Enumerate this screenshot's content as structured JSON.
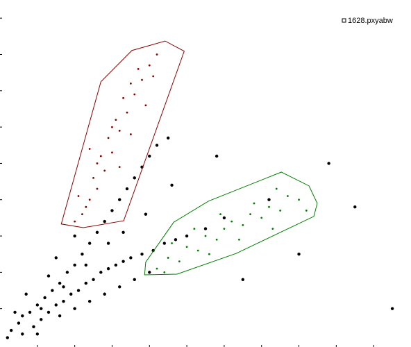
{
  "chart_data": {
    "type": "scatter",
    "xlim": [
      0,
      11
    ],
    "ylim": [
      0,
      9.5
    ],
    "xticks": [
      1,
      2,
      3,
      4,
      5,
      6,
      7,
      8,
      9,
      10
    ],
    "yticks": [
      1,
      2,
      3,
      4,
      5,
      6,
      7,
      8,
      9
    ],
    "legend": "top-right",
    "series": [
      {
        "name": "1628.pxyabw",
        "color": "#000000",
        "x": [
          0.3,
          0.5,
          0.6,
          0.8,
          0.9,
          1.0,
          1.1,
          1.2,
          1.3,
          1.4,
          1.5,
          1.6,
          1.7,
          1.8,
          1.9,
          2.0,
          2.1,
          2.2,
          2.3,
          2.4,
          2.5,
          2.6,
          2.7,
          2.8,
          2.9,
          3.0,
          3.1,
          3.2,
          3.3,
          3.4,
          3.5,
          3.6,
          3.8,
          3.8,
          4.1,
          4.0,
          4.4,
          4.2,
          4.7,
          4.5,
          5.0,
          0.4,
          0.7,
          1.0,
          1.3,
          1.6,
          2.0,
          2.4,
          2.8,
          3.2,
          3.6,
          4.0,
          1.5,
          2.0,
          0.2,
          0.6,
          1.1,
          1.7,
          2.3,
          2.9,
          3.3,
          3.9,
          4.6,
          5.5,
          6.0,
          6.5,
          7.2,
          8.0,
          9.5,
          8.8,
          5.8,
          10.5
        ],
        "values": [
          0.4,
          0.6,
          0.3,
          0.9,
          0.5,
          1.1,
          0.7,
          1.3,
          0.9,
          1.5,
          1.1,
          1.7,
          1.2,
          2.0,
          1.4,
          2.2,
          1.5,
          2.5,
          1.7,
          2.8,
          1.8,
          3.1,
          2.0,
          3.4,
          2.1,
          3.7,
          2.2,
          4.0,
          2.3,
          4.3,
          2.4,
          4.6,
          2.5,
          4.9,
          2.6,
          5.2,
          2.8,
          5.5,
          2.9,
          5.7,
          3.0,
          0.9,
          1.4,
          0.3,
          1.9,
          0.8,
          1.0,
          1.2,
          1.4,
          1.6,
          1.8,
          2.0,
          2.4,
          3.0,
          0.2,
          0.8,
          1.0,
          1.6,
          2.2,
          2.8,
          3.1,
          3.6,
          4.4,
          3.2,
          3.5,
          1.8,
          4.0,
          2.5,
          3.8,
          5.0,
          5.2,
          1.0
        ]
      },
      {
        "color": "#8b0000",
        "x": [
          2.2,
          2.4,
          2.3,
          2.6,
          2.5,
          2.8,
          2.7,
          3.0,
          2.9,
          3.2,
          3.1,
          3.4,
          3.3,
          3.6,
          3.5,
          3.8,
          3.7,
          4.0,
          4.1,
          2.1,
          2.6,
          3.0,
          3.5,
          3.9,
          2.0,
          3.2,
          2.4,
          4.2
        ],
        "values": [
          3.6,
          4.0,
          3.8,
          4.3,
          4.6,
          4.8,
          5.2,
          5.3,
          5.7,
          5.9,
          6.2,
          6.4,
          6.8,
          6.9,
          7.2,
          7.3,
          7.6,
          7.7,
          7.4,
          4.1,
          5.0,
          6.0,
          5.8,
          6.6,
          3.4,
          4.9,
          5.4,
          8.0
        ]
      },
      {
        "color": "#008000",
        "x": [
          4.2,
          4.5,
          4.8,
          5.0,
          5.3,
          5.5,
          5.8,
          6.0,
          6.2,
          6.5,
          6.7,
          7.0,
          7.2,
          7.5,
          7.7,
          8.0,
          4.6,
          5.2,
          5.9,
          6.8,
          7.4,
          4.4,
          5.6,
          6.4,
          7.3,
          8.2
        ],
        "values": [
          2.1,
          2.4,
          2.3,
          2.7,
          2.6,
          3.0,
          2.9,
          3.2,
          3.4,
          3.3,
          3.6,
          3.5,
          3.8,
          3.7,
          4.1,
          4.0,
          2.8,
          3.2,
          3.6,
          3.9,
          4.3,
          2.0,
          2.5,
          2.9,
          3.2,
          3.7
        ]
      }
    ],
    "gates": [
      {
        "color": "#8b0000",
        "x": [
          1.64,
          2.7,
          3.53,
          4.42,
          4.93,
          3.31,
          2.23
        ],
        "y": [
          3.33,
          7.25,
          8.11,
          8.37,
          8.09,
          3.42,
          3.23
        ]
      },
      {
        "color": "#008000",
        "x": [
          3.9,
          4.65,
          5.58,
          7.53,
          8.27,
          8.49,
          8.4,
          6.32,
          4.74,
          3.87
        ],
        "y": [
          2.28,
          3.38,
          3.96,
          4.76,
          4.38,
          3.9,
          3.54,
          2.52,
          1.95,
          1.93
        ]
      }
    ]
  }
}
